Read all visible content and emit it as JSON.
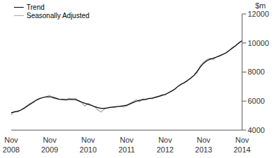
{
  "chart_data": {
    "type": "line",
    "y_label": "$m",
    "categories": [
      "Nov 2008",
      null,
      null,
      null,
      null,
      null,
      null,
      null,
      null,
      null,
      null,
      null,
      "Nov 2009",
      null,
      null,
      null,
      null,
      null,
      null,
      null,
      null,
      null,
      null,
      null,
      "Nov 2010",
      null,
      null,
      null,
      null,
      null,
      null,
      null,
      null,
      null,
      null,
      null,
      "Nov 2011",
      null,
      null,
      null,
      null,
      null,
      null,
      null,
      null,
      null,
      null,
      null,
      "Nov 2012",
      null,
      null,
      null,
      null,
      null,
      null,
      null,
      null,
      null,
      null,
      null,
      "Nov 2013",
      null,
      null,
      null,
      null,
      null,
      null,
      null,
      null,
      null,
      null,
      null,
      "Nov 2014"
    ],
    "series": [
      {
        "name": "Trend",
        "color": "#000000",
        "values": [
          5200,
          5250,
          5300,
          5380,
          5500,
          5650,
          5800,
          5950,
          6080,
          6180,
          6250,
          6290,
          6300,
          6270,
          6200,
          6130,
          6100,
          6100,
          6110,
          6120,
          6100,
          6030,
          5930,
          5850,
          5780,
          5700,
          5620,
          5550,
          5500,
          5500,
          5530,
          5570,
          5600,
          5630,
          5650,
          5680,
          5720,
          5800,
          5900,
          5990,
          6050,
          6090,
          6130,
          6170,
          6210,
          6260,
          6320,
          6390,
          6470,
          6560,
          6680,
          6830,
          7000,
          7150,
          7280,
          7420,
          7580,
          7780,
          8050,
          8350,
          8600,
          8780,
          8880,
          8950,
          9030,
          9120,
          9220,
          9330,
          9480,
          9650,
          9820,
          10000,
          10150
        ]
      },
      {
        "name": "Seasonally Adjusted",
        "color": "#a6a6a6",
        "values": [
          5050,
          5300,
          5250,
          5400,
          5550,
          5700,
          5850,
          5900,
          6100,
          6200,
          6250,
          6300,
          6400,
          6200,
          6150,
          6100,
          6150,
          6050,
          6200,
          6150,
          6200,
          6000,
          5900,
          5650,
          5850,
          5750,
          5600,
          5400,
          5250,
          5450,
          5550,
          5600,
          5550,
          5600,
          5650,
          5600,
          5650,
          5850,
          5950,
          6100,
          5950,
          6150,
          6100,
          6200,
          6150,
          6300,
          6350,
          6450,
          6400,
          6600,
          6700,
          6800,
          7050,
          7200,
          7250,
          7400,
          7600,
          7750,
          7950,
          8450,
          8700,
          8850,
          8950,
          8850,
          9050,
          9100,
          9200,
          9300,
          9500,
          9700,
          9800,
          10050,
          10150
        ]
      }
    ],
    "ylim": [
      4000,
      12000
    ],
    "yticks": [
      4000,
      6000,
      8000,
      10000,
      12000
    ],
    "grid": false,
    "legend": "top-left"
  }
}
